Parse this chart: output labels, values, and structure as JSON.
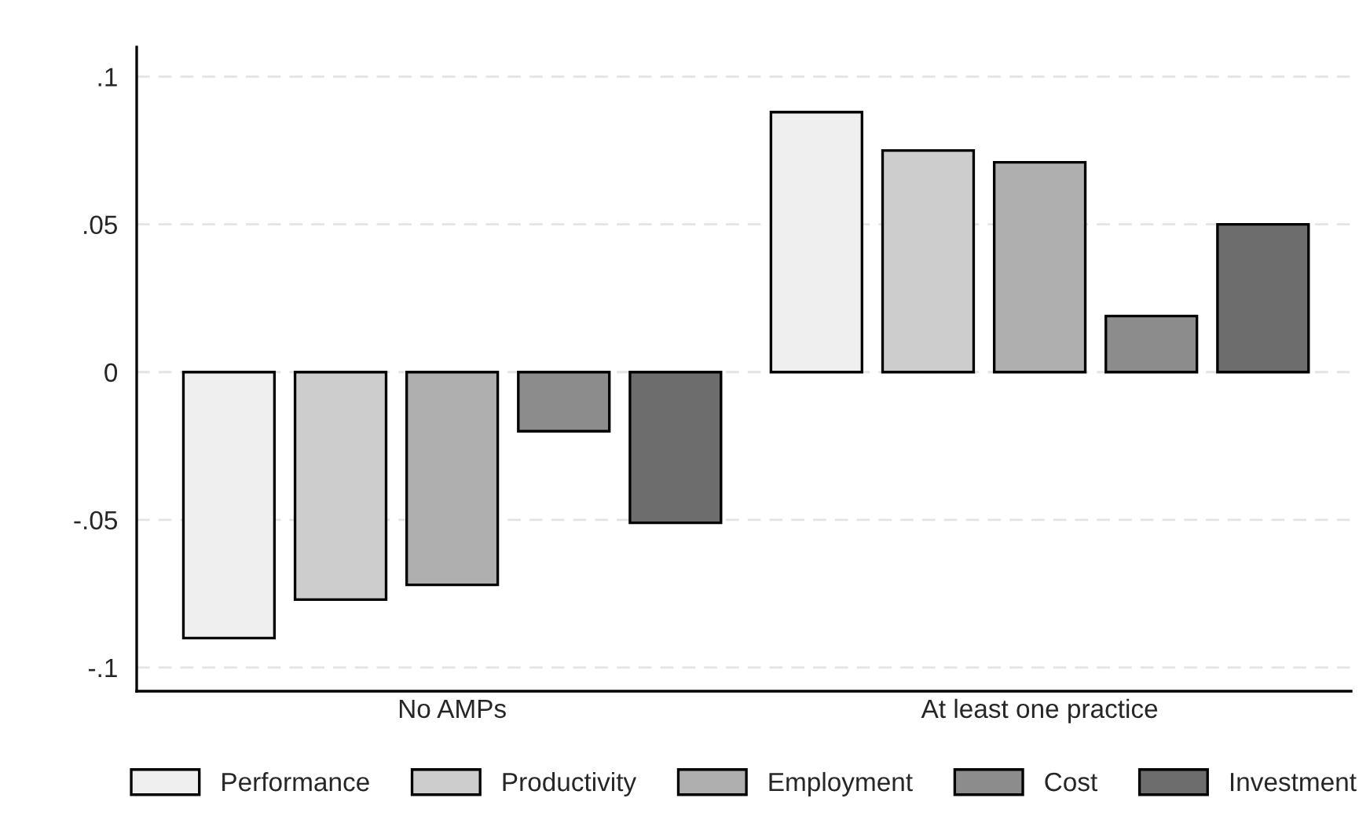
{
  "chart_data": {
    "type": "bar",
    "categories": [
      "No AMPs",
      "At least one practice"
    ],
    "series": [
      {
        "name": "Performance",
        "color": "#efefef",
        "values": [
          -0.09,
          0.088
        ]
      },
      {
        "name": "Productivity",
        "color": "#cdcdcd",
        "values": [
          -0.077,
          0.075
        ]
      },
      {
        "name": "Employment",
        "color": "#afafaf",
        "values": [
          -0.072,
          0.071
        ]
      },
      {
        "name": "Cost",
        "color": "#8c8c8c",
        "values": [
          -0.02,
          0.019
        ]
      },
      {
        "name": "Investment",
        "color": "#6d6d6d",
        "values": [
          -0.051,
          0.05
        ]
      }
    ],
    "ylim": [
      -0.108,
      0.11
    ],
    "yticks": [
      {
        "value": -0.1,
        "label": "-.1"
      },
      {
        "value": -0.05,
        "label": "-.05"
      },
      {
        "value": 0,
        "label": "0"
      },
      {
        "value": 0.05,
        "label": ".05"
      },
      {
        "value": 0.1,
        "label": ".1"
      }
    ],
    "grid": "y",
    "legend": "bottom"
  }
}
